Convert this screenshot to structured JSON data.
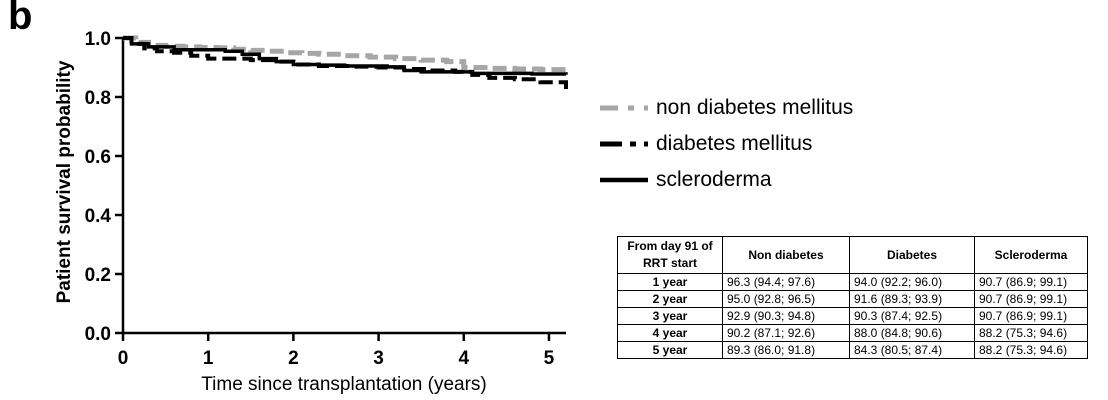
{
  "panel_label": "b",
  "chart_data": {
    "type": "line",
    "xlabel": "Time since transplantation (years)",
    "ylabel": "Patient survival probability",
    "xlim": [
      0,
      5.2
    ],
    "ylim": [
      0,
      1.0
    ],
    "xticks": [
      "0",
      "1",
      "2",
      "3",
      "4",
      "5"
    ],
    "yticks": [
      "0.0",
      "0.2",
      "0.4",
      "0.6",
      "0.8",
      "1.0"
    ],
    "legend_position": "right",
    "series": [
      {
        "name": "non diabetes mellitus",
        "style": "dashed",
        "color": "#a6a6a6",
        "x": [
          0,
          0.15,
          0.3,
          0.5,
          0.7,
          0.9,
          1.1,
          1.3,
          1.5,
          1.7,
          1.9,
          2.1,
          2.3,
          2.6,
          2.9,
          3.2,
          3.5,
          3.8,
          4.0,
          4.3,
          4.6,
          4.9,
          5.2
        ],
        "y": [
          1.0,
          0.985,
          0.975,
          0.972,
          0.97,
          0.968,
          0.967,
          0.962,
          0.958,
          0.955,
          0.95,
          0.948,
          0.945,
          0.94,
          0.935,
          0.93,
          0.925,
          0.92,
          0.9,
          0.897,
          0.895,
          0.893,
          0.886
        ]
      },
      {
        "name": "diabetes mellitus",
        "style": "dashed",
        "color": "#000000",
        "x": [
          0,
          0.1,
          0.25,
          0.4,
          0.6,
          0.8,
          1.0,
          1.2,
          1.5,
          1.8,
          2.0,
          2.3,
          2.7,
          3.0,
          3.3,
          3.6,
          3.9,
          4.1,
          4.3,
          4.6,
          4.9,
          5.2
        ],
        "y": [
          1.0,
          0.98,
          0.965,
          0.955,
          0.95,
          0.94,
          0.93,
          0.93,
          0.925,
          0.92,
          0.91,
          0.905,
          0.903,
          0.9,
          0.895,
          0.89,
          0.885,
          0.875,
          0.865,
          0.86,
          0.85,
          0.82
        ]
      },
      {
        "name": "scleroderma",
        "style": "solid",
        "color": "#000000",
        "x": [
          0,
          0.1,
          0.3,
          0.6,
          0.9,
          1.2,
          1.4,
          1.6,
          1.8,
          2.0,
          2.3,
          2.6,
          2.9,
          3.1,
          3.3,
          3.5,
          3.9,
          4.1,
          4.5,
          4.8,
          5.2
        ],
        "y": [
          1.0,
          0.98,
          0.97,
          0.96,
          0.96,
          0.955,
          0.945,
          0.93,
          0.92,
          0.91,
          0.908,
          0.905,
          0.905,
          0.902,
          0.89,
          0.885,
          0.885,
          0.88,
          0.88,
          0.878,
          0.876
        ]
      }
    ],
    "table": {
      "headers": [
        "From day 91 of RRT start",
        "Non diabetes",
        "Diabetes",
        "Scleroderma"
      ],
      "rows": [
        [
          "1 year",
          "96.3 (94.4; 97.6)",
          "94.0 (92.2; 96.0)",
          "90.7 (86.9; 99.1)"
        ],
        [
          "2 year",
          "95.0 (92.8; 96.5)",
          "91.6 (89.3; 93.9)",
          "90.7 (86.9; 99.1)"
        ],
        [
          "3 year",
          "92.9 (90.3; 94.8)",
          "90.3 (87.4; 92.5)",
          "90.7 (86.9; 99.1)"
        ],
        [
          "4 year",
          "90.2 (87.1; 92.6)",
          "88.0 (84.8; 90.6)",
          "88.2 (75.3; 94.6)"
        ],
        [
          "5 year",
          "89.3 (86.0; 91.8)",
          "84.3 (80.5; 87.4)",
          "88.2 (75.3; 94.6)"
        ]
      ]
    }
  }
}
